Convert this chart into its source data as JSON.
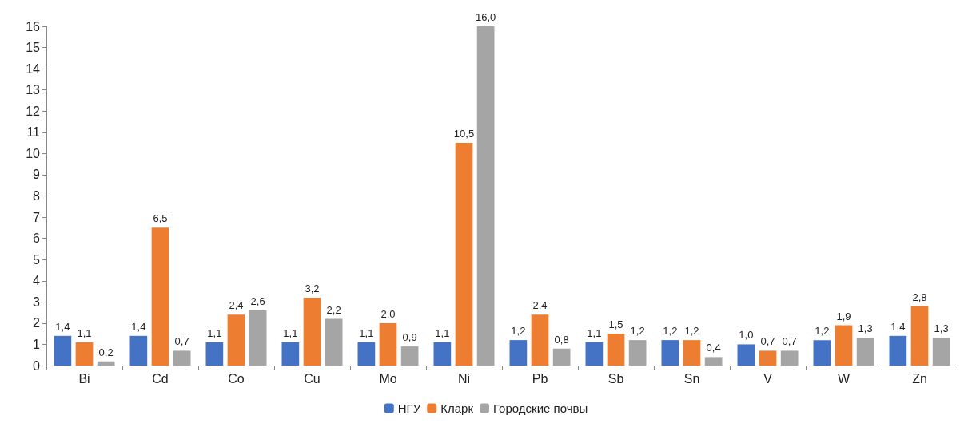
{
  "chart_data": {
    "type": "bar",
    "categories": [
      "Bi",
      "Cd",
      "Co",
      "Cu",
      "Mo",
      "Ni",
      "Pb",
      "Sb",
      "Sn",
      "V",
      "W",
      "Zn"
    ],
    "series": [
      {
        "name": "НГУ",
        "color": "#4472c4",
        "values": [
          1.4,
          1.4,
          1.1,
          1.1,
          1.1,
          1.1,
          1.2,
          1.1,
          1.2,
          1.0,
          1.2,
          1.4
        ],
        "value_labels": [
          "1,4",
          "1,4",
          "1,1",
          "1,1",
          "1,1",
          "1,1",
          "1,2",
          "1,1",
          "1,2",
          "1,0",
          "1,2",
          "1,4"
        ]
      },
      {
        "name": "Кларк",
        "color": "#ed7d31",
        "values": [
          1.1,
          6.5,
          2.4,
          3.2,
          2.0,
          10.5,
          2.4,
          1.5,
          1.2,
          0.7,
          1.9,
          2.8
        ],
        "value_labels": [
          "1,1",
          "6,5",
          "2,4",
          "3,2",
          "2,0",
          "10,5",
          "2,4",
          "1,5",
          "1,2",
          "0,7",
          "1,9",
          "2,8"
        ]
      },
      {
        "name": "Городские почвы",
        "color": "#a5a5a5",
        "values": [
          0.2,
          0.7,
          2.6,
          2.2,
          0.9,
          16.0,
          0.8,
          1.2,
          0.4,
          0.7,
          1.3,
          1.3
        ],
        "value_labels": [
          "0,2",
          "0,7",
          "2,6",
          "2,2",
          "0,9",
          "16,0",
          "0,8",
          "1,2",
          "0,4",
          "0,7",
          "1,3",
          "1,3"
        ]
      }
    ],
    "ylim": [
      0,
      16
    ],
    "yticks": [
      0,
      1,
      2,
      3,
      4,
      5,
      6,
      7,
      8,
      9,
      10,
      11,
      12,
      13,
      14,
      15,
      16
    ],
    "grid": false,
    "legend": "bottom"
  }
}
